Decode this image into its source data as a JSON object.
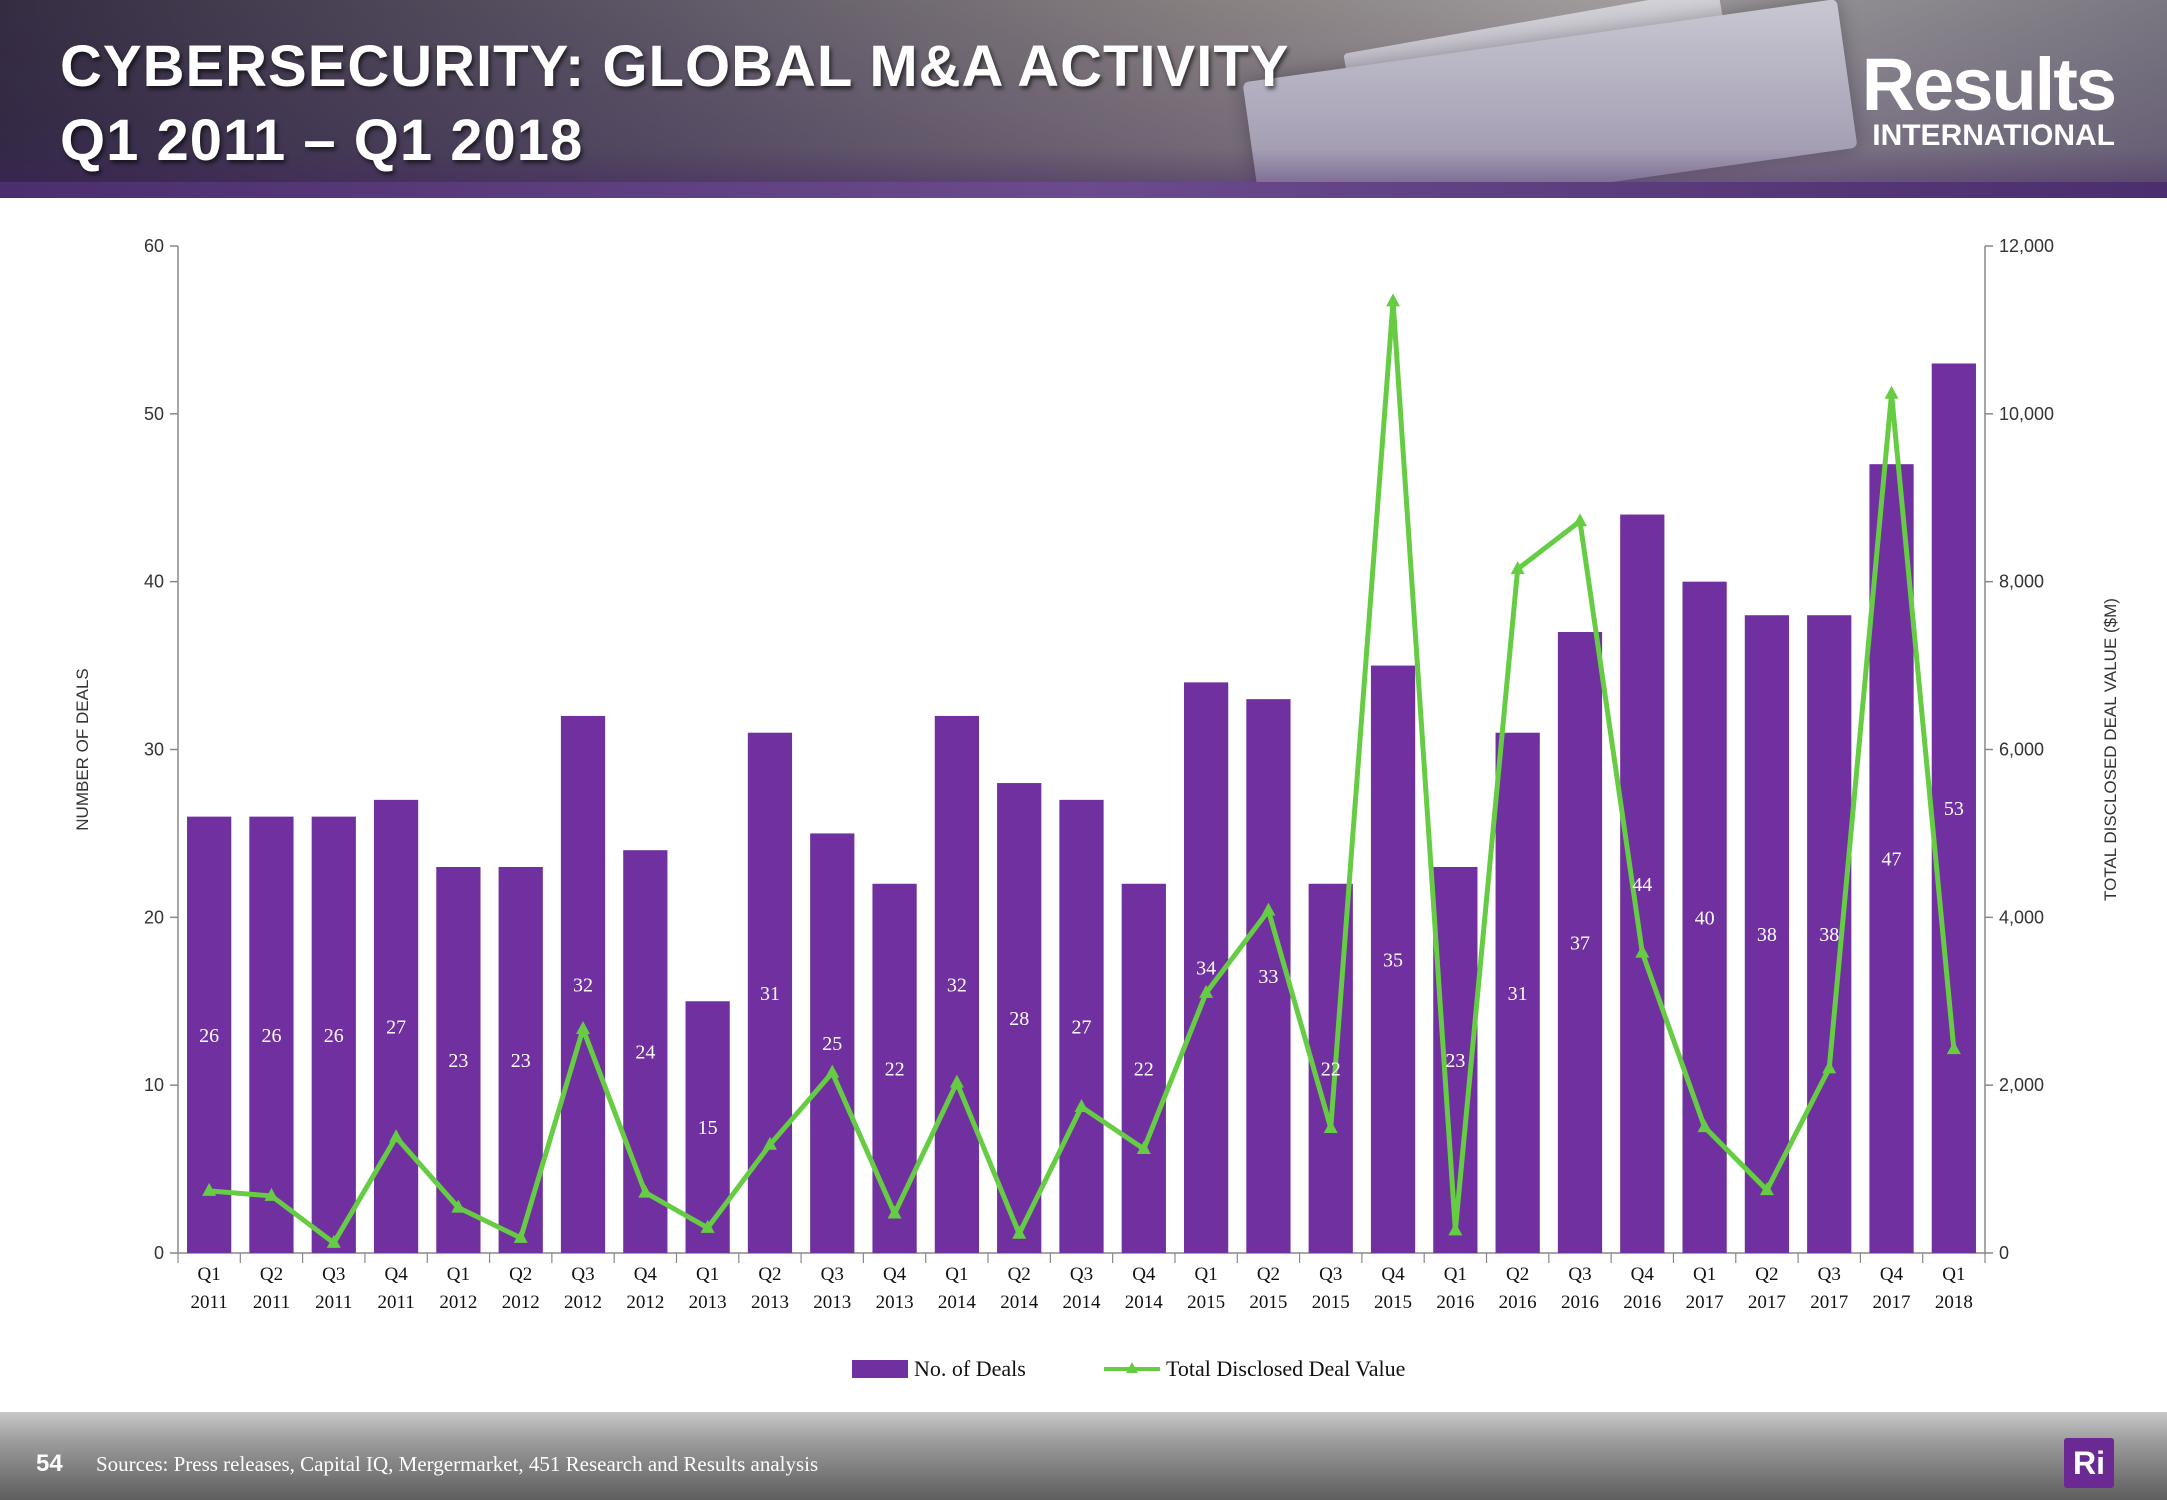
{
  "header": {
    "title_line1": "CYBERSECURITY: GLOBAL M&A ACTIVITY",
    "title_line2": "Q1 2011 – Q1 2018",
    "logo_line1": "Results",
    "logo_line2": "INTERNATIONAL"
  },
  "footer": {
    "page_number": "54",
    "sources": "Sources: Press releases, Capital IQ, Mergermarket, 451 Research and Results analysis",
    "badge": "Ri"
  },
  "colors": {
    "bar": "#7030a0",
    "line": "#66cc44",
    "axis": "#888888"
  },
  "chart_data": {
    "type": "bar",
    "title": "CYBERSECURITY: GLOBAL M&A ACTIVITY Q1 2011 – Q1 2018",
    "ylabel": "NUMBER OF DEALS",
    "y2label": "TOTAL DISCLOSED DEAL VALUE ($M)",
    "ylim": [
      0,
      60
    ],
    "y2lim": [
      0,
      12000
    ],
    "yticks": [
      "0",
      "10",
      "20",
      "30",
      "40",
      "50",
      "60"
    ],
    "y2ticks": [
      "0",
      "2,000",
      "4,000",
      "6,000",
      "8,000",
      "10,000",
      "12,000"
    ],
    "categories": [
      [
        "Q1",
        "2011"
      ],
      [
        "Q2",
        "2011"
      ],
      [
        "Q3",
        "2011"
      ],
      [
        "Q4",
        "2011"
      ],
      [
        "Q1",
        "2012"
      ],
      [
        "Q2",
        "2012"
      ],
      [
        "Q3",
        "2012"
      ],
      [
        "Q4",
        "2012"
      ],
      [
        "Q1",
        "2013"
      ],
      [
        "Q2",
        "2013"
      ],
      [
        "Q3",
        "2013"
      ],
      [
        "Q4",
        "2013"
      ],
      [
        "Q1",
        "2014"
      ],
      [
        "Q2",
        "2014"
      ],
      [
        "Q3",
        "2014"
      ],
      [
        "Q4",
        "2014"
      ],
      [
        "Q1",
        "2015"
      ],
      [
        "Q2",
        "2015"
      ],
      [
        "Q3",
        "2015"
      ],
      [
        "Q4",
        "2015"
      ],
      [
        "Q1",
        "2016"
      ],
      [
        "Q2",
        "2016"
      ],
      [
        "Q3",
        "2016"
      ],
      [
        "Q4",
        "2016"
      ],
      [
        "Q1",
        "2017"
      ],
      [
        "Q2",
        "2017"
      ],
      [
        "Q3",
        "2017"
      ],
      [
        "Q4",
        "2017"
      ],
      [
        "Q1",
        "2018"
      ]
    ],
    "series": [
      {
        "name": "No. of Deals",
        "type": "bar",
        "axis": "left",
        "values": [
          26,
          26,
          26,
          27,
          23,
          23,
          32,
          24,
          15,
          31,
          25,
          22,
          32,
          28,
          27,
          22,
          34,
          33,
          22,
          35,
          23,
          31,
          37,
          44,
          40,
          38,
          38,
          47,
          53
        ]
      },
      {
        "name": "Total Disclosed Deal Value",
        "type": "line",
        "axis": "right",
        "values": [
          740,
          680,
          120,
          1380,
          540,
          180,
          2670,
          720,
          300,
          1290,
          2150,
          470,
          2030,
          230,
          1740,
          1240,
          3100,
          4080,
          1490,
          11340,
          270,
          8150,
          8720,
          3580,
          1500,
          750,
          2200,
          10240,
          2430
        ]
      }
    ],
    "legend": [
      "No. of Deals",
      "Total Disclosed Deal Value"
    ],
    "legend_position": "bottom-center"
  }
}
